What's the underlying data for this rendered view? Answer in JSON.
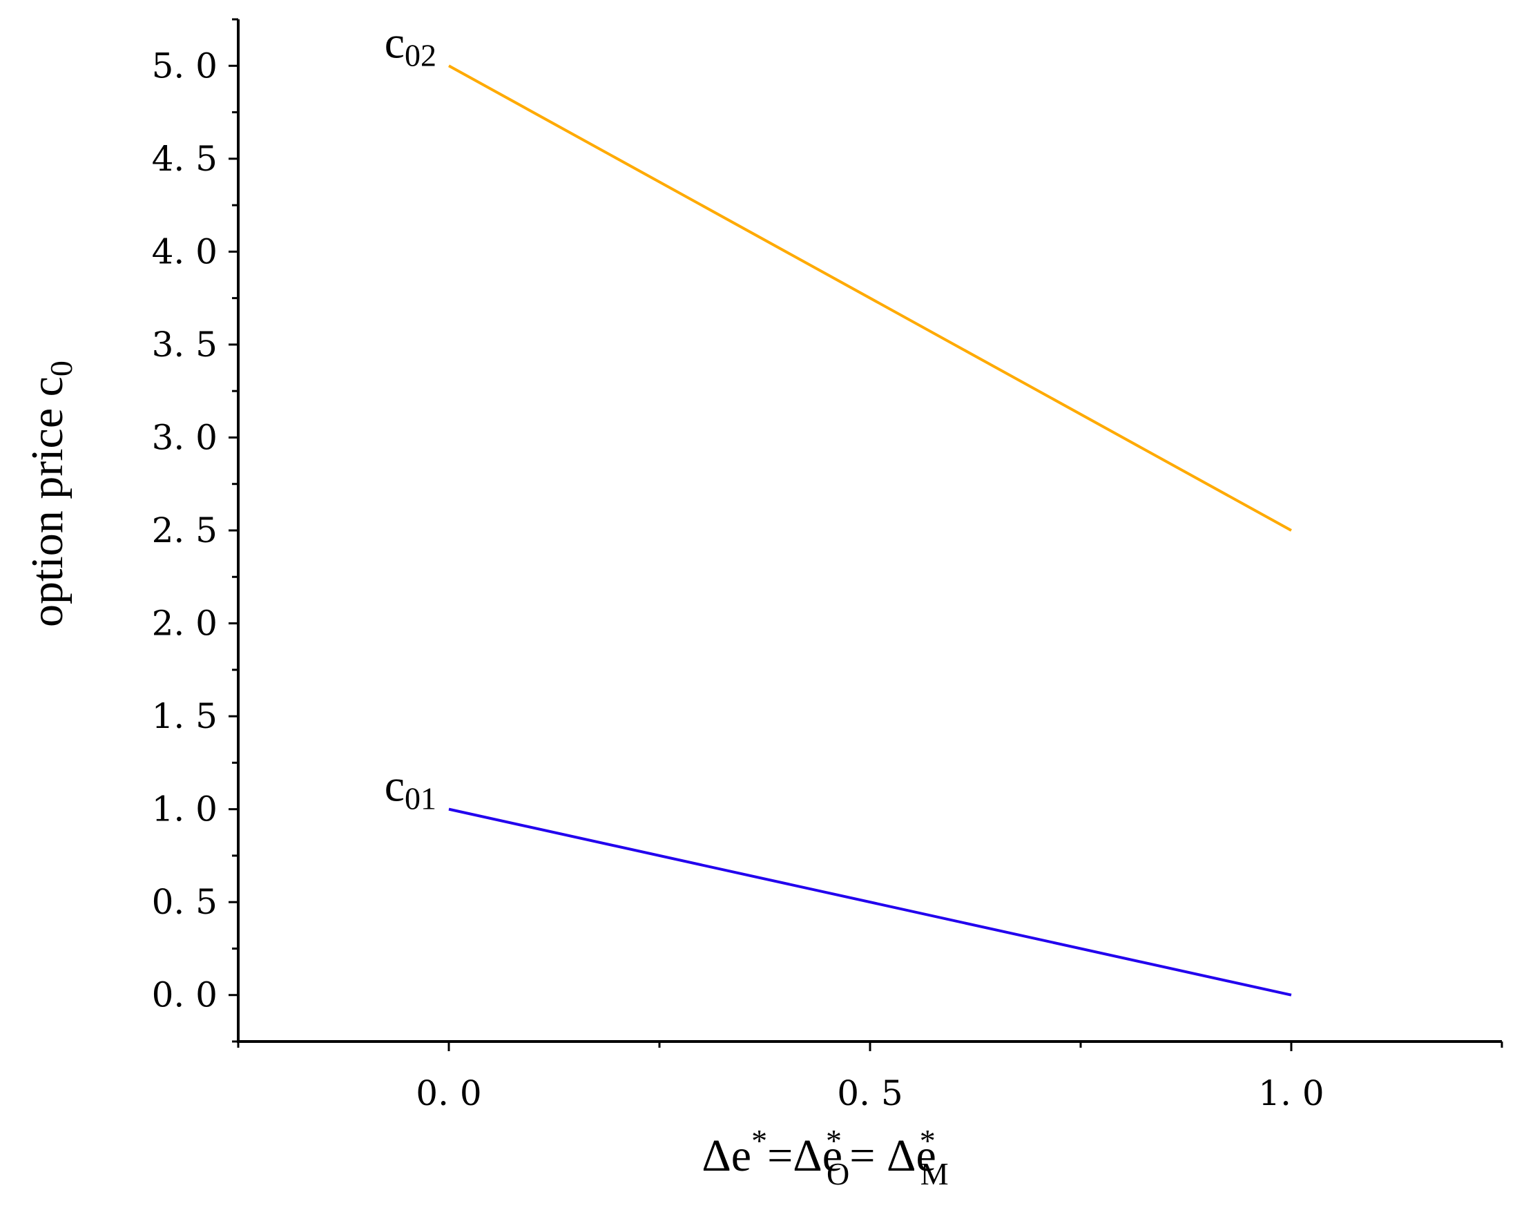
{
  "chart_data": {
    "type": "line",
    "title": "",
    "xlabel": {
      "parts": [
        {
          "text": "Δe",
          "sup": "*"
        },
        {
          "text": "=Δe",
          "sup": "*",
          "sub": "O"
        },
        {
          "text": "= Δe",
          "sup": "*",
          "sub": "M"
        }
      ]
    },
    "ylabel": {
      "main": "option price c",
      "sub": "0"
    },
    "xlim": [
      -0.25,
      1.25
    ],
    "ylim": [
      -0.25,
      5.25
    ],
    "xticks": [
      0.0,
      0.5,
      1.0
    ],
    "xtick_labels": [
      "0. 0",
      "0. 5",
      "1. 0"
    ],
    "yticks": [
      0.0,
      0.5,
      1.0,
      1.5,
      2.0,
      2.5,
      3.0,
      3.5,
      4.0,
      4.5,
      5.0
    ],
    "ytick_labels": [
      "0. 0",
      "0. 5",
      "1. 0",
      "1. 5",
      "2. 0",
      "2. 5",
      "3. 0",
      "3. 5",
      "4. 0",
      "4. 5",
      "5. 0"
    ],
    "grid": false,
    "series": [
      {
        "label_main": "c",
        "label_sub": "02",
        "color": "#FFAA00",
        "x": [
          0.0,
          1.0
        ],
        "y": [
          5.0,
          2.5
        ]
      },
      {
        "label_main": "c",
        "label_sub": "01",
        "color": "#2200EE",
        "x": [
          0.0,
          1.0
        ],
        "y": [
          1.0,
          0.0
        ]
      }
    ]
  }
}
